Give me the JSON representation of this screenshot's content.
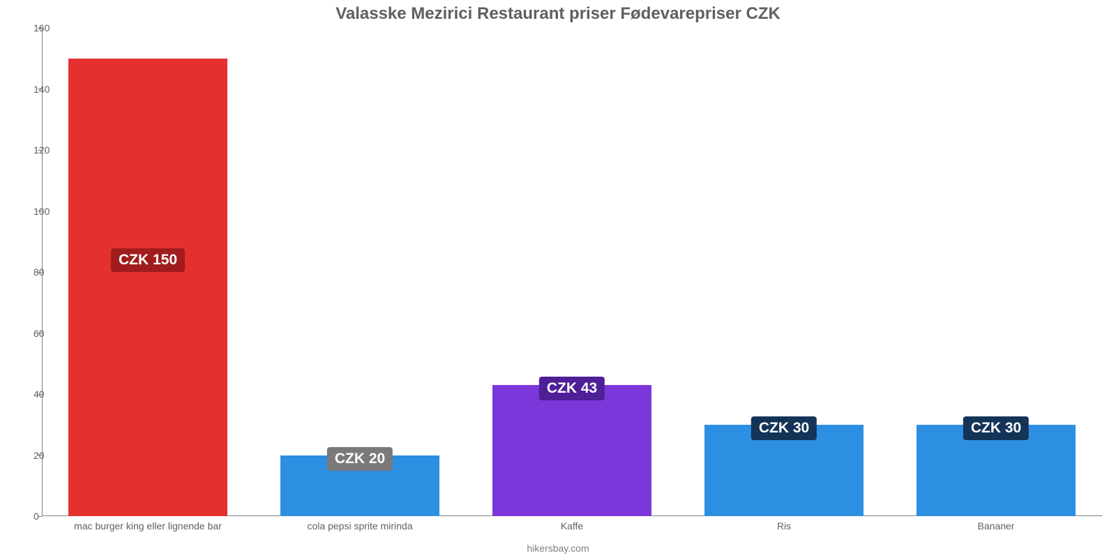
{
  "chart": {
    "type": "bar",
    "title": "Valasske Mezirici Restaurant priser Fødevarepriser CZK",
    "title_color": "#606060",
    "title_fontsize": 24,
    "footer": "hikersbay.com",
    "background_color": "#ffffff",
    "axis_color": "#808080",
    "tick_label_color": "#606060",
    "tick_label_fontsize": 14,
    "ylim": [
      0,
      160
    ],
    "ytick_step": 20,
    "yticks": [
      0,
      20,
      40,
      60,
      80,
      100,
      120,
      140,
      160
    ],
    "bar_width_ratio": 0.75,
    "value_label_fontsize": 21,
    "value_label_text_color": "#ffffff",
    "categories": [
      "mac burger king eller lignende bar",
      "cola pepsi sprite mirinda",
      "Kaffe",
      "Ris",
      "Bananer"
    ],
    "values": [
      150,
      20,
      43,
      30,
      30
    ],
    "value_labels": [
      "CZK 150",
      "CZK 20",
      "CZK 43",
      "CZK 30",
      "CZK 30"
    ],
    "bar_colors": [
      "#e53030",
      "#2d8fe2",
      "#7b37d9",
      "#2d8fe2",
      "#2d8fe2"
    ],
    "value_label_bg_colors": [
      "#a11d1d",
      "#7a7a7a",
      "#4e1f96",
      "#143457",
      "#143457"
    ]
  }
}
